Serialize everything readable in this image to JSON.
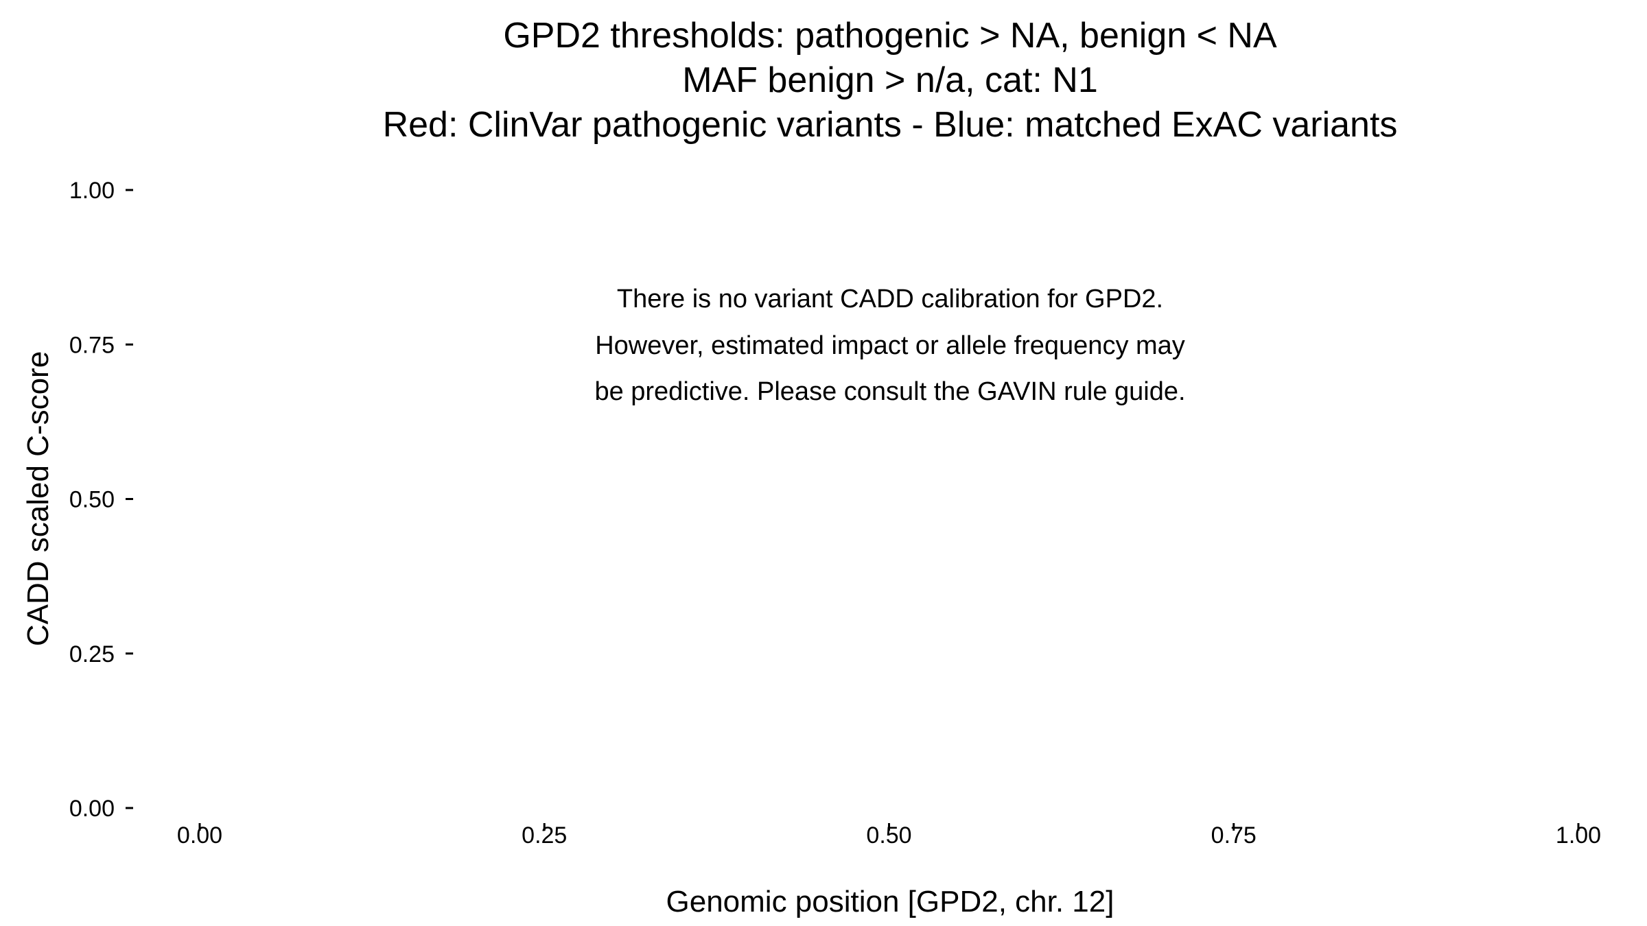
{
  "chart_data": {
    "type": "scatter",
    "title_lines": [
      "GPD2 thresholds: pathogenic > NA, benign < NA",
      "MAF benign > n/a, cat: N1",
      "Red: ClinVar pathogenic variants - Blue: matched ExAC variants"
    ],
    "xlabel": "Genomic position [GPD2, chr. 12]",
    "ylabel": "CADD scaled C-score",
    "xlim": [
      0,
      1
    ],
    "ylim": [
      0,
      1
    ],
    "x_ticks": [
      0,
      0.25,
      0.5,
      0.75,
      1
    ],
    "x_tick_labels": [
      "0.00",
      "0.25",
      "0.50",
      "0.75",
      "1.00"
    ],
    "y_ticks": [
      0,
      0.25,
      0.5,
      0.75,
      1
    ],
    "y_tick_labels": [
      "0.00",
      "0.25",
      "0.50",
      "0.75",
      "1.00"
    ],
    "grid": false,
    "series": [],
    "annotation_lines": [
      "There is no variant CADD calibration for GPD2.",
      "However, estimated impact or allele frequency may",
      "be predictive. Please consult the GAVIN rule guide."
    ],
    "colors": {
      "pathogenic": "#ff0000",
      "benign": "#0000ff"
    }
  }
}
